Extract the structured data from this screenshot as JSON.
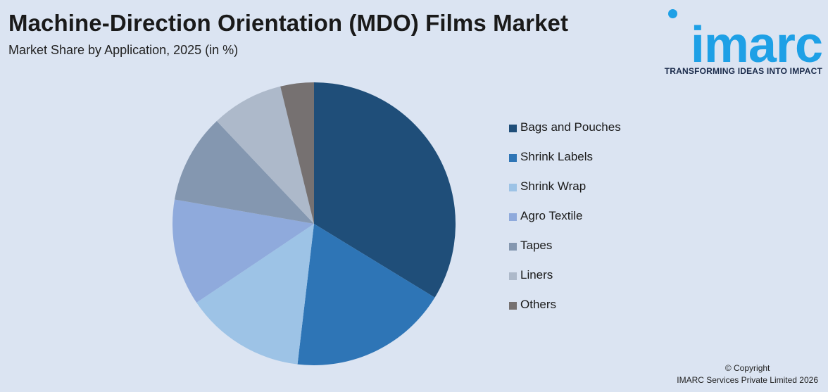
{
  "header": {
    "title": "Machine-Direction Orientation (MDO) Films Market",
    "subtitle": "Market Share by Application, 2025 (in %)"
  },
  "logo": {
    "word": "imarc",
    "tagline": "TRANSFORMING IDEAS INTO IMPACT",
    "color": "#1ea0e6"
  },
  "chart_data": {
    "type": "pie",
    "title": "Machine-Direction Orientation (MDO) Films Market",
    "subtitle": "Market Share by Application, 2025 (in %)",
    "legend_position": "right",
    "slices": [
      {
        "label": "Bags and Pouches",
        "value": 34.4,
        "color": "#1f4e79"
      },
      {
        "label": "Shrink Labels",
        "value": 18.5,
        "color": "#2e75b6"
      },
      {
        "label": "Shrink Wrap",
        "value": 14.0,
        "color": "#9dc3e6"
      },
      {
        "label": "Agro Textile",
        "value": 12.4,
        "color": "#8faadc"
      },
      {
        "label": "Tapes",
        "value": 10.4,
        "color": "#8497b0"
      },
      {
        "label": "Liners",
        "value": 8.4,
        "color": "#adb9ca"
      },
      {
        "label": "Others",
        "value": 3.9,
        "color": "#767171"
      }
    ]
  },
  "footer": {
    "copyright_line1": "© Copyright",
    "copyright_line2": "IMARC Services Private Limited 2026"
  }
}
